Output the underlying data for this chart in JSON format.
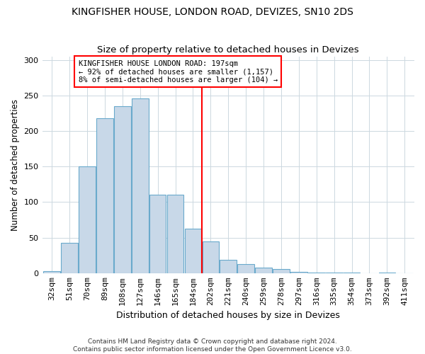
{
  "title": "KINGFISHER HOUSE, LONDON ROAD, DEVIZES, SN10 2DS",
  "subtitle": "Size of property relative to detached houses in Devizes",
  "xlabel": "Distribution of detached houses by size in Devizes",
  "ylabel": "Number of detached properties",
  "bar_labels": [
    "32sqm",
    "51sqm",
    "70sqm",
    "89sqm",
    "108sqm",
    "127sqm",
    "146sqm",
    "165sqm",
    "184sqm",
    "202sqm",
    "221sqm",
    "240sqm",
    "259sqm",
    "278sqm",
    "297sqm",
    "316sqm",
    "335sqm",
    "354sqm",
    "373sqm",
    "392sqm",
    "411sqm"
  ],
  "bar_values": [
    3,
    43,
    150,
    218,
    235,
    246,
    110,
    110,
    63,
    45,
    19,
    13,
    8,
    6,
    2,
    1,
    1,
    1,
    0,
    1,
    0
  ],
  "bar_color": "#c8d8e8",
  "bar_edge_color": "#6aaacc",
  "vline_color": "red",
  "annotation_text": "KINGFISHER HOUSE LONDON ROAD: 197sqm\n← 92% of detached houses are smaller (1,157)\n8% of semi-detached houses are larger (104) →",
  "annotation_box_color": "white",
  "annotation_box_edge": "red",
  "footer_text": "Contains HM Land Registry data © Crown copyright and database right 2024.\nContains public sector information licensed under the Open Government Licence v3.0.",
  "ylim": [
    0,
    305
  ],
  "yticks": [
    0,
    50,
    100,
    150,
    200,
    250,
    300
  ],
  "title_fontsize": 10,
  "subtitle_fontsize": 9.5,
  "xlabel_fontsize": 9,
  "ylabel_fontsize": 8.5,
  "tick_fontsize": 8,
  "footer_fontsize": 6.5
}
